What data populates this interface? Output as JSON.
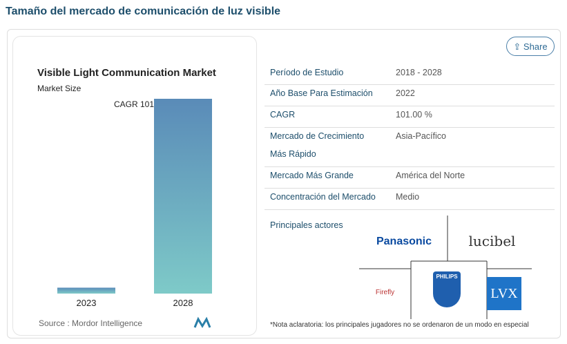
{
  "header": {
    "title": "Tamaño del mercado de comunicación de luz visible",
    "share": "Share"
  },
  "chart_data": {
    "type": "bar",
    "title": "Visible Light Communication Market",
    "subtitle": "Market Size",
    "categories": [
      "2023",
      "2028"
    ],
    "values": [
      1,
      33
    ],
    "ylim": [
      0,
      33
    ],
    "annotation": "CAGR 101",
    "source": "Source : Mordor Intelligence"
  },
  "table": {
    "rows": [
      [
        "Período de Estudio",
        "2018 - 2028"
      ],
      [
        "Año Base Para Estimación",
        "2022"
      ],
      [
        "CAGR",
        "101.00 %"
      ],
      [
        "Mercado de Crecimiento Más Rápido",
        "Asia-Pacífico"
      ],
      [
        "Mercado Más Grande",
        "América del Norte"
      ],
      [
        "Concentración del Mercado",
        "Medio"
      ]
    ]
  },
  "players": {
    "title": "Principales actores",
    "logos": [
      "Panasonic",
      "lucibel",
      "PHILIPS",
      "Firefly",
      "LVX"
    ]
  },
  "note": "*Nota aclaratoria: los principales jugadores no se ordenaron de un modo en especial"
}
